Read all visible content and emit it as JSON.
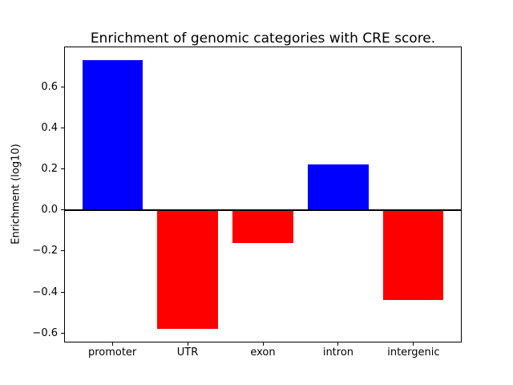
{
  "figure": {
    "title": "Enrichment of genomic categories with CRE score.",
    "ylabel": "Enrichment (log10)"
  },
  "chart_data": {
    "type": "bar",
    "title": "Enrichment of genomic categories with CRE score.",
    "xlabel": "",
    "ylabel": "Enrichment (log10)",
    "categories": [
      "promoter",
      "UTR",
      "exon",
      "intron",
      "intergenic"
    ],
    "values": [
      0.73,
      -0.58,
      -0.16,
      0.22,
      -0.44
    ],
    "bar_colors": [
      "#0000ff",
      "#ff0000",
      "#ff0000",
      "#0000ff",
      "#ff0000"
    ],
    "positive_color": "#0000ff",
    "negative_color": "#ff0000",
    "ylim": [
      -0.6455,
      0.7955
    ],
    "yticks": [
      -0.6,
      -0.4,
      -0.2,
      0.0,
      0.2,
      0.4,
      0.6
    ],
    "ytick_labels": [
      "−0.6",
      "−0.4",
      "−0.2",
      "0.0",
      "0.2",
      "0.4",
      "0.6"
    ],
    "zero_line": true,
    "grid": false,
    "legend": null,
    "background": "#ffffff"
  }
}
